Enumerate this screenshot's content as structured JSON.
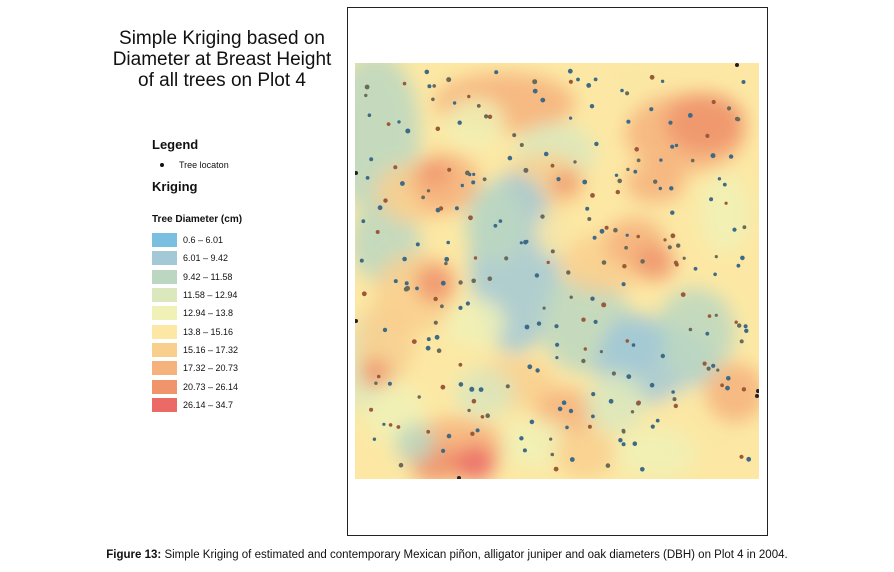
{
  "title": {
    "line1": "Simple Kriging based on",
    "line2": "Diameter at Breast Height",
    "line3": "of all trees on Plot 4"
  },
  "legend": {
    "heading": "Legend",
    "tree_label": "Tree locaton",
    "kriging_heading": "Kriging",
    "diameter_heading": "Tree Diameter (cm)",
    "classes": [
      {
        "label": "0.6 – 6.01",
        "color": "#7bbfe0"
      },
      {
        "label": "6.01 – 9.42",
        "color": "#a3c9d6"
      },
      {
        "label": "9.42 – 11.58",
        "color": "#bcd7c1"
      },
      {
        "label": "11.58 – 12.94",
        "color": "#dbe8bd"
      },
      {
        "label": "12.94 – 13.8",
        "color": "#f0f1b6"
      },
      {
        "label": "13.8 – 15.16",
        "color": "#fce8a4"
      },
      {
        "label": "15.16 – 17.32",
        "color": "#f9cf8e"
      },
      {
        "label": "17.32 – 20.73",
        "color": "#f6b27c"
      },
      {
        "label": "20.73 – 26.14",
        "color": "#f0946c"
      },
      {
        "label": "26.14 – 34.7",
        "color": "#ec6a66"
      }
    ]
  },
  "caption": {
    "label": "Figure 13:",
    "text": " Simple Kriging of estimated and contemporary Mexican piñon, alligator juniper and oak diameters (DBH) on Plot 4 in 2004."
  }
}
